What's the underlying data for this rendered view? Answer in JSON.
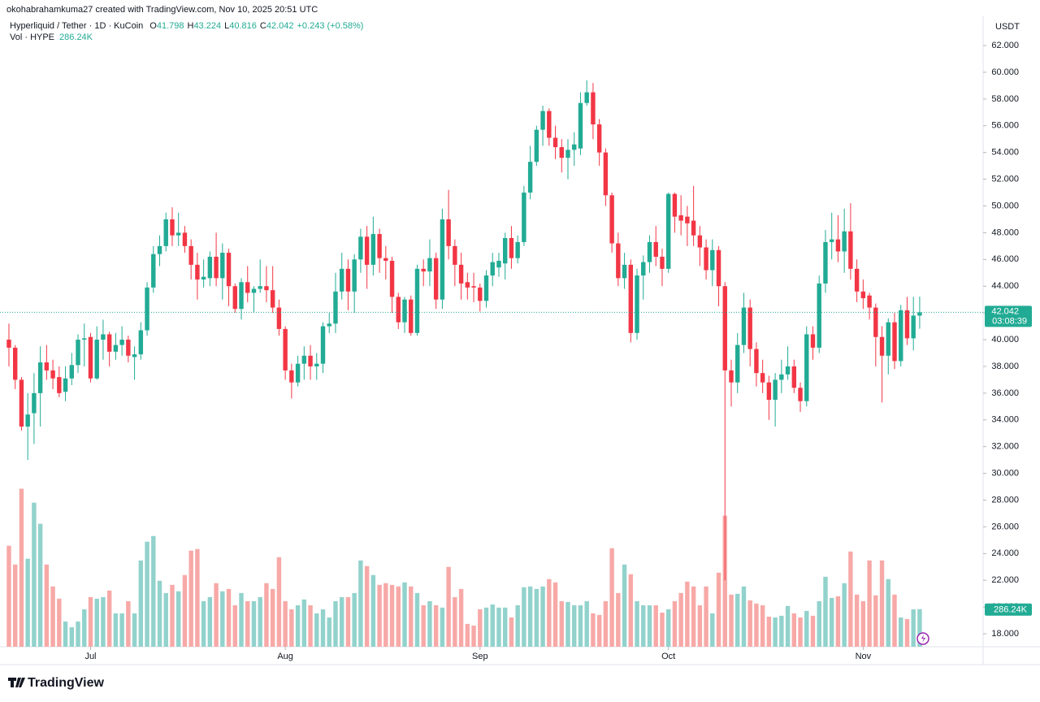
{
  "header": {
    "credit": "okohabrahamkuma27 created with TradingView.com, Nov 10, 2025 20:51 UTC",
    "logo": "TradingView"
  },
  "chart_data": {
    "type": "candlestick",
    "symbol": "Hyperliquid / Tether · 1D · KuCoin",
    "ohlc_letters": [
      "O",
      "H",
      "L",
      "C"
    ],
    "change": "+0.243 (+0.58%)",
    "volume_title": "Vol · HYPE",
    "volume_label": "286.24K",
    "currency": "USDT",
    "countdown": "03:08:39",
    "up_color": "#22ab94",
    "down_color": "#f23645",
    "volume_up_color": "#92d2cc",
    "volume_down_color": "#f7a9a7",
    "grid": false,
    "xlim": [
      -1.42,
      155.1
    ],
    "xticks": [
      {
        "value": 13,
        "label": "Jul"
      },
      {
        "value": 44,
        "label": "Aug"
      },
      {
        "value": 75,
        "label": "Sep"
      },
      {
        "value": 105,
        "label": "Oct"
      },
      {
        "value": 136,
        "label": "Nov"
      }
    ],
    "ylim": [
      17.03,
      64.19
    ],
    "yticks": [
      {
        "value": 18,
        "label": "18.000"
      },
      {
        "value": 20,
        "label": "20.000"
      },
      {
        "value": 22,
        "label": "22.000"
      },
      {
        "value": 24,
        "label": "24.000"
      },
      {
        "value": 26,
        "label": "26.000"
      },
      {
        "value": 28,
        "label": "28.000"
      },
      {
        "value": 30,
        "label": "30.000"
      },
      {
        "value": 32,
        "label": "32.000"
      },
      {
        "value": 34,
        "label": "34.000"
      },
      {
        "value": 36,
        "label": "36.000"
      },
      {
        "value": 38,
        "label": "38.000"
      },
      {
        "value": 40,
        "label": "40.000"
      },
      {
        "value": 42,
        "label": "42.000"
      },
      {
        "value": 44,
        "label": "44.000"
      },
      {
        "value": 46,
        "label": "46.000"
      },
      {
        "value": 48,
        "label": "48.000"
      },
      {
        "value": 50,
        "label": "50.000"
      },
      {
        "value": 52,
        "label": "52.000"
      },
      {
        "value": 54,
        "label": "54.000"
      },
      {
        "value": 56,
        "label": "56.000"
      },
      {
        "value": 58,
        "label": "58.000"
      },
      {
        "value": 60,
        "label": "60.000"
      },
      {
        "value": 62,
        "label": "62.000"
      }
    ],
    "volume_lim": [
      0,
      4800
    ],
    "open": [
      40,
      39.4,
      37,
      33.5,
      34.5,
      36,
      38.3,
      37.7,
      37.2,
      36.1,
      37.1,
      38.1,
      40,
      40.2,
      37.1,
      40,
      40.4,
      39.1,
      39.6,
      40,
      38.7,
      38.9,
      40.7,
      43.9,
      46.4,
      47,
      49,
      47.8,
      48,
      47,
      45.6,
      44.5,
      44.6,
      46.2,
      44.6,
      46.5,
      44,
      42.3,
      44.3,
      43.5,
      43.8,
      44,
      43.7,
      42.4,
      40.8,
      37.7,
      36.8,
      38.2,
      38.8,
      38,
      38.2,
      41,
      41.2,
      43.6,
      45.3,
      43.6,
      46,
      47.7,
      45.6,
      47.9,
      46.1,
      45.9,
      43.2,
      41.3,
      43,
      40.5,
      45.3,
      45.1,
      46.1,
      43,
      49,
      47,
      45.6,
      44.3,
      44,
      43.9,
      42.9,
      44.8,
      45.4,
      45.7,
      47.6,
      46.1,
      47.3,
      51,
      53.3,
      55.7,
      57.1,
      55.1,
      54.4,
      53.6,
      54.2,
      54.3,
      57.7,
      58.5,
      56.1,
      54,
      50.8,
      47.2,
      44.6,
      45.6,
      40.5,
      44.8,
      45.8,
      47.3,
      46.2,
      45.3,
      50.9,
      49.3,
      49.2,
      48.9,
      47.8,
      46.9,
      45.2,
      46.7,
      44,
      37.7,
      36.8,
      39.6,
      42.4,
      39.3,
      37.5,
      36.8,
      35.5,
      37,
      37.4,
      38,
      36.4,
      35.4,
      40.4,
      39.4,
      44.2,
      47.3,
      47.5,
      46.6,
      48.1,
      45.3,
      43.6,
      43.3,
      42.4,
      40.2,
      38.8,
      41.3,
      38.4,
      42.2,
      40.1,
      41.798
    ],
    "high": [
      41.2,
      39.6,
      37.2,
      36,
      37.5,
      39.5,
      39.6,
      38.5,
      38,
      38,
      39,
      40.4,
      41.2,
      40.5,
      41,
      41.5,
      40.6,
      40.5,
      41,
      40.3,
      39.5,
      41.3,
      44.3,
      47,
      47.8,
      49.5,
      49.9,
      49.5,
      48.5,
      47.5,
      46.5,
      46,
      46.6,
      48,
      47.2,
      46.8,
      44.2,
      44.6,
      45.5,
      44,
      46,
      45.5,
      45.5,
      43,
      41,
      38.2,
      38.8,
      39.5,
      39.6,
      39,
      41.3,
      42,
      45,
      46.5,
      46,
      46.4,
      48.3,
      48.5,
      49.2,
      48.3,
      47,
      46.2,
      43.5,
      43.2,
      43.3,
      45.6,
      46,
      47.5,
      46.5,
      49.8,
      51.2,
      47.5,
      46.5,
      45,
      45,
      44.2,
      45.2,
      46.5,
      46.5,
      48,
      48.5,
      47.8,
      51.5,
      54.5,
      56,
      57.5,
      57.3,
      56,
      55,
      55,
      55.5,
      58.5,
      59.4,
      59.2,
      56.5,
      54.3,
      51,
      48,
      46.5,
      46,
      45.3,
      46.3,
      47.8,
      48.5,
      46.8,
      51,
      51,
      50.8,
      50,
      51.5,
      48.5,
      47.5,
      47.5,
      47,
      44.3,
      38.5,
      40.5,
      43.5,
      43,
      39.8,
      38.5,
      37.3,
      37.5,
      38.5,
      39.5,
      38.5,
      36.8,
      41,
      41,
      44.8,
      48.2,
      49.5,
      49.3,
      49.8,
      50.2,
      46,
      44.5,
      43.5,
      42.7,
      41,
      41.6,
      42,
      42.6,
      43.2,
      43.2,
      43.224
    ],
    "low": [
      38,
      36.3,
      33.2,
      31,
      32.2,
      33.5,
      37,
      36.3,
      35.7,
      35.4,
      36.6,
      37.5,
      38,
      36.8,
      37,
      38.5,
      38,
      38.5,
      38.8,
      38.3,
      37,
      38.5,
      40.3,
      43.5,
      45.5,
      46.6,
      47,
      47,
      46.5,
      44.5,
      43,
      43.9,
      44,
      44,
      43,
      42.5,
      42,
      41.5,
      42.8,
      42,
      43.5,
      42.8,
      42,
      40.3,
      37,
      35.6,
      36.5,
      37,
      37,
      37,
      37.5,
      40.5,
      40.5,
      43,
      42.2,
      42,
      45,
      43.8,
      44.8,
      45,
      44.5,
      42,
      40.8,
      40.5,
      40.3,
      40.3,
      44,
      44,
      42.3,
      42.3,
      46,
      44,
      43,
      43,
      42.8,
      42.1,
      42.4,
      44,
      44.7,
      44.5,
      45.3,
      45.7,
      47,
      50.5,
      53,
      54.5,
      54.5,
      53.5,
      52.5,
      52,
      53,
      53.8,
      57.5,
      55,
      53,
      50,
      46.5,
      44,
      43.8,
      39.8,
      40,
      43,
      45,
      45.5,
      44,
      45,
      48,
      47.8,
      47,
      47,
      45.5,
      44.5,
      44,
      42.5,
      22,
      35,
      36,
      39,
      38,
      36.5,
      36,
      34,
      33.5,
      36,
      37,
      36,
      34.6,
      35,
      38.5,
      39,
      43.5,
      46,
      45.8,
      45,
      44.5,
      42.8,
      42.3,
      41.5,
      38,
      35.3,
      37.4,
      37.8,
      38,
      39.6,
      39.2,
      40.816
    ],
    "close": [
      39.4,
      37,
      33.5,
      34.4,
      36,
      38.3,
      37.7,
      37.1,
      36,
      37.1,
      38.1,
      40,
      40.1,
      37.1,
      40,
      40.4,
      39.1,
      39.6,
      40,
      38.8,
      38.9,
      40.7,
      43.9,
      46.4,
      47,
      49,
      47.8,
      48,
      47,
      45.6,
      44.5,
      44.7,
      46.2,
      44.6,
      46.5,
      44,
      42.3,
      44.3,
      43.5,
      43.8,
      44,
      43.7,
      42.4,
      40.8,
      37.7,
      36.8,
      38.2,
      38.8,
      38,
      38.2,
      41,
      41.2,
      43.6,
      45.3,
      43.6,
      46,
      47.7,
      45.6,
      47.9,
      46.1,
      45.9,
      43.2,
      41.3,
      43,
      40.5,
      45.3,
      45.1,
      46.1,
      43,
      49,
      47,
      45.6,
      44.2,
      43.9,
      43.9,
      42.9,
      44.8,
      45.8,
      45.9,
      47.6,
      46.1,
      47.3,
      51,
      53.3,
      55.7,
      57.1,
      55.1,
      54.4,
      53.6,
      54.2,
      54.6,
      57.7,
      58.5,
      56.1,
      54,
      50.8,
      47.2,
      44.6,
      45.6,
      40.5,
      44.8,
      45.8,
      47.3,
      46.2,
      45.3,
      50.9,
      49.2,
      48.9,
      48.7,
      47.8,
      46.9,
      45.2,
      46.7,
      44,
      37.7,
      36.8,
      39.6,
      42.4,
      39.3,
      37.5,
      36.8,
      35.5,
      37,
      37.4,
      38,
      36.4,
      35.4,
      40.4,
      39.4,
      44.2,
      47.3,
      47.5,
      46.6,
      48.1,
      45.3,
      43.6,
      43.1,
      42.4,
      40.2,
      38.8,
      41.3,
      38.4,
      42.2,
      40.1,
      41.8,
      42.042
    ],
    "volume": [
      769,
      626,
      1203,
      670,
      1097,
      936,
      626,
      459,
      366,
      192,
      149,
      192,
      285,
      378,
      366,
      378,
      428,
      254,
      254,
      347,
      254,
      657,
      800,
      843,
      502,
      409,
      471,
      422,
      546,
      732,
      744,
      347,
      378,
      484,
      422,
      440,
      316,
      409,
      347,
      347,
      378,
      484,
      440,
      682,
      347,
      285,
      316,
      360,
      316,
      254,
      285,
      223,
      347,
      378,
      378,
      409,
      657,
      614,
      546,
      471,
      484,
      471,
      459,
      490,
      459,
      409,
      316,
      347,
      316,
      298,
      608,
      378,
      440,
      174,
      161,
      285,
      298,
      322,
      298,
      298,
      223,
      316,
      453,
      459,
      440,
      459,
      515,
      490,
      347,
      341,
      316,
      316,
      347,
      254,
      242,
      347,
      750,
      409,
      626,
      552,
      347,
      316,
      316,
      316,
      260,
      285,
      347,
      409,
      496,
      459,
      316,
      459,
      254,
      564,
      998,
      397,
      403,
      459,
      353,
      329,
      316,
      229,
      223,
      236,
      310,
      254,
      223,
      273,
      236,
      347,
      533,
      372,
      384,
      484,
      725,
      397,
      347,
      657,
      391,
      657,
      515,
      397,
      223,
      211,
      285,
      286.24
    ]
  }
}
